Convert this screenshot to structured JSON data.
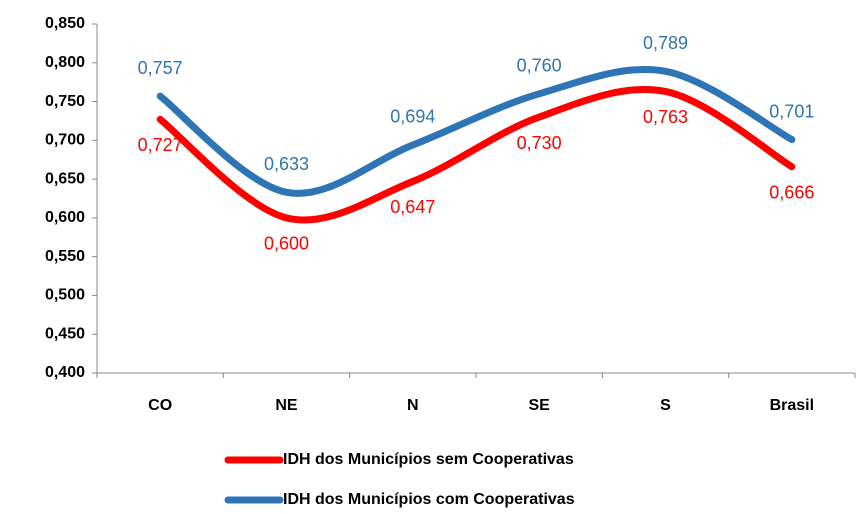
{
  "chart_data": {
    "type": "line",
    "categories": [
      "CO",
      "NE",
      "N",
      "SE",
      "S",
      "Brasil"
    ],
    "series": [
      {
        "name": "IDH dos Municípios sem Cooperativas",
        "color": "#ff0000",
        "values": [
          0.727,
          0.6,
          0.647,
          0.73,
          0.763,
          0.666
        ],
        "value_labels": [
          "0,727",
          "0,600",
          "0,647",
          "0,730",
          "0,763",
          "0,666"
        ]
      },
      {
        "name": "IDH dos Municípios com Cooperativas",
        "color": "#2e75b6",
        "values": [
          0.757,
          0.633,
          0.694,
          0.76,
          0.789,
          0.701
        ],
        "value_labels": [
          "0,757",
          "0,633",
          "0,694",
          "0,760",
          "0,789",
          "0,701"
        ]
      }
    ],
    "ylim": [
      0.4,
      0.85
    ],
    "yticks": [
      {
        "value": 0.4,
        "label": "0,400"
      },
      {
        "value": 0.45,
        "label": "0,450"
      },
      {
        "value": 0.5,
        "label": "0,500"
      },
      {
        "value": 0.55,
        "label": "0,550"
      },
      {
        "value": 0.6,
        "label": "0,600"
      },
      {
        "value": 0.65,
        "label": "0,650"
      },
      {
        "value": 0.7,
        "label": "0,700"
      },
      {
        "value": 0.75,
        "label": "0,750"
      },
      {
        "value": 0.8,
        "label": "0,800"
      },
      {
        "value": 0.85,
        "label": "0,850"
      }
    ],
    "smooth": true,
    "legend": "bottom"
  }
}
